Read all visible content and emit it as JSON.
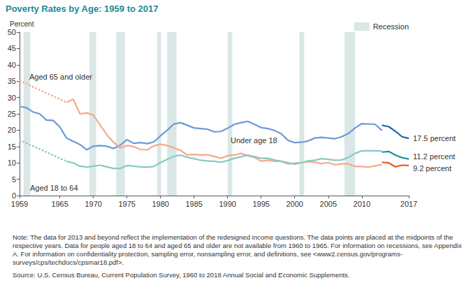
{
  "chart_data": {
    "type": "line",
    "title": "Poverty Rates by Age: 1959 to 2017",
    "ylabel": "Percent",
    "x": [
      1959,
      1960,
      1961,
      1962,
      1963,
      1964,
      1965,
      1966,
      1967,
      1968,
      1969,
      1970,
      1971,
      1972,
      1973,
      1974,
      1975,
      1976,
      1977,
      1978,
      1979,
      1980,
      1981,
      1982,
      1983,
      1984,
      1985,
      1986,
      1987,
      1988,
      1989,
      1990,
      1991,
      1992,
      1993,
      1994,
      1995,
      1996,
      1997,
      1998,
      1999,
      2000,
      2001,
      2002,
      2003,
      2004,
      2005,
      2006,
      2007,
      2008,
      2009,
      2010,
      2011,
      2012,
      2013,
      2014,
      2015,
      2016,
      2017
    ],
    "xlim": [
      1959,
      2017
    ],
    "xticks": [
      1959,
      1965,
      1970,
      1975,
      1980,
      1985,
      1990,
      1995,
      2000,
      2005,
      2010,
      2017
    ],
    "ylim": [
      0,
      50
    ],
    "yticks": [
      0,
      5,
      10,
      15,
      20,
      25,
      30,
      35,
      40,
      45,
      50
    ],
    "grid": false,
    "legend": "upper right",
    "recessions": {
      "name": "Recession",
      "color": "#dae7e7",
      "periods": [
        [
          1959.6,
          1960.6
        ],
        [
          1969.4,
          1970.4
        ],
        [
          1973.4,
          1974.7
        ],
        [
          1979.5,
          1980.1
        ],
        [
          1981.0,
          1982.4
        ],
        [
          1990.0,
          1990.7
        ],
        [
          2000.7,
          2001.4
        ],
        [
          2007.4,
          2009.0
        ]
      ]
    },
    "series": [
      {
        "name": "Under age 18",
        "color": "#6b9ad6",
        "line_style": "solid",
        "values": [
          27.3,
          26.9,
          25.6,
          25.0,
          23.1,
          23.0,
          21.0,
          17.6,
          16.6,
          15.6,
          14.0,
          15.1,
          15.3,
          15.1,
          14.4,
          15.4,
          17.1,
          16.0,
          16.2,
          15.9,
          16.4,
          18.3,
          20.0,
          21.9,
          22.3,
          21.5,
          20.7,
          20.5,
          20.3,
          19.5,
          19.6,
          20.6,
          21.8,
          22.3,
          22.7,
          21.8,
          20.8,
          20.5,
          19.9,
          18.9,
          16.9,
          16.2,
          16.3,
          16.7,
          17.6,
          17.8,
          17.6,
          17.4,
          18.0,
          19.0,
          20.7,
          22.0,
          21.9,
          21.8,
          19.9,
          null,
          null,
          null,
          null
        ]
      },
      {
        "name": "Under age 18",
        "color": "#1d67a6",
        "line_style": "solid",
        "values": [
          null,
          null,
          null,
          null,
          null,
          null,
          null,
          null,
          null,
          null,
          null,
          null,
          null,
          null,
          null,
          null,
          null,
          null,
          null,
          null,
          null,
          null,
          null,
          null,
          null,
          null,
          null,
          null,
          null,
          null,
          null,
          null,
          null,
          null,
          null,
          null,
          null,
          null,
          null,
          null,
          null,
          null,
          null,
          null,
          null,
          null,
          null,
          null,
          null,
          null,
          null,
          null,
          null,
          null,
          21.5,
          21.1,
          19.7,
          18.0,
          17.5
        ],
        "value_labels": [
          null,
          null,
          null,
          null,
          null,
          null,
          null,
          null,
          null,
          null,
          null,
          null,
          null,
          null,
          null,
          null,
          null,
          null,
          null,
          null,
          null,
          null,
          null,
          null,
          null,
          null,
          null,
          null,
          null,
          null,
          null,
          null,
          null,
          null,
          null,
          null,
          null,
          null,
          null,
          null,
          null,
          null,
          null,
          null,
          null,
          null,
          null,
          null,
          null,
          null,
          null,
          null,
          null,
          null,
          null,
          null,
          null,
          null,
          "17.5 percent"
        ]
      },
      {
        "name": "Aged 65 and older",
        "color": "#f5a98a",
        "line_style": "dotted",
        "values": [
          35.2,
          null,
          null,
          null,
          null,
          null,
          null,
          28.5,
          null,
          null,
          null,
          null,
          null,
          null,
          null,
          null,
          null,
          null,
          null,
          null,
          null,
          null,
          null,
          null,
          null,
          null,
          null,
          null,
          null,
          null,
          null,
          null,
          null,
          null,
          null,
          null,
          null,
          null,
          null,
          null,
          null,
          null,
          null,
          null,
          null,
          null,
          null,
          null,
          null,
          null,
          null,
          null,
          null,
          null,
          null,
          null,
          null,
          null,
          null
        ]
      },
      {
        "name": "Aged 65 and older",
        "color": "#f5a98a",
        "line_style": "solid",
        "values": [
          null,
          null,
          null,
          null,
          null,
          null,
          null,
          28.5,
          29.5,
          25.0,
          25.3,
          24.6,
          21.6,
          18.6,
          16.3,
          14.6,
          15.3,
          15.0,
          14.1,
          14.0,
          15.2,
          15.7,
          15.3,
          14.6,
          13.8,
          12.4,
          12.6,
          12.4,
          12.5,
          12.0,
          11.4,
          12.2,
          12.4,
          12.9,
          12.2,
          11.7,
          10.5,
          10.8,
          10.5,
          10.5,
          9.7,
          9.9,
          10.1,
          10.4,
          10.2,
          9.8,
          10.1,
          9.4,
          9.7,
          9.7,
          8.9,
          8.9,
          8.7,
          9.1,
          9.5,
          null,
          null,
          null,
          null
        ]
      },
      {
        "name": "Aged 65 and older",
        "color": "#e5572b",
        "line_style": "solid",
        "values": [
          null,
          null,
          null,
          null,
          null,
          null,
          null,
          null,
          null,
          null,
          null,
          null,
          null,
          null,
          null,
          null,
          null,
          null,
          null,
          null,
          null,
          null,
          null,
          null,
          null,
          null,
          null,
          null,
          null,
          null,
          null,
          null,
          null,
          null,
          null,
          null,
          null,
          null,
          null,
          null,
          null,
          null,
          null,
          null,
          null,
          null,
          null,
          null,
          null,
          null,
          null,
          null,
          null,
          null,
          10.2,
          10.0,
          8.8,
          9.3,
          9.2
        ],
        "value_labels": [
          null,
          null,
          null,
          null,
          null,
          null,
          null,
          null,
          null,
          null,
          null,
          null,
          null,
          null,
          null,
          null,
          null,
          null,
          null,
          null,
          null,
          null,
          null,
          null,
          null,
          null,
          null,
          null,
          null,
          null,
          null,
          null,
          null,
          null,
          null,
          null,
          null,
          null,
          null,
          null,
          null,
          null,
          null,
          null,
          null,
          null,
          null,
          null,
          null,
          null,
          null,
          null,
          null,
          null,
          null,
          null,
          null,
          null,
          "9.2 percent"
        ]
      },
      {
        "name": "Aged 18 to 64",
        "color": "#86c8c6",
        "line_style": "dotted",
        "values": [
          17.0,
          null,
          null,
          null,
          null,
          null,
          null,
          10.5,
          null,
          null,
          null,
          null,
          null,
          null,
          null,
          null,
          null,
          null,
          null,
          null,
          null,
          null,
          null,
          null,
          null,
          null,
          null,
          null,
          null,
          null,
          null,
          null,
          null,
          null,
          null,
          null,
          null,
          null,
          null,
          null,
          null,
          null,
          null,
          null,
          null,
          null,
          null,
          null,
          null,
          null,
          null,
          null,
          null,
          null,
          null,
          null,
          null,
          null,
          null
        ]
      },
      {
        "name": "Aged 18 to 64",
        "color": "#86c8c6",
        "line_style": "solid",
        "values": [
          null,
          null,
          null,
          null,
          null,
          null,
          null,
          10.5,
          10.0,
          9.0,
          8.7,
          9.0,
          9.3,
          8.8,
          8.3,
          8.3,
          9.2,
          9.0,
          8.8,
          8.7,
          8.9,
          10.1,
          11.1,
          12.0,
          12.4,
          11.7,
          11.3,
          10.8,
          10.6,
          10.5,
          10.2,
          10.7,
          11.4,
          11.9,
          12.4,
          11.9,
          11.4,
          11.4,
          10.9,
          10.5,
          10.1,
          9.6,
          10.1,
          10.6,
          10.8,
          11.3,
          11.1,
          10.8,
          10.9,
          11.7,
          12.9,
          13.7,
          13.7,
          13.7,
          13.6,
          null,
          null,
          null,
          null
        ]
      },
      {
        "name": "Aged 18 to 64",
        "color": "#17909a",
        "line_style": "solid",
        "values": [
          null,
          null,
          null,
          null,
          null,
          null,
          null,
          null,
          null,
          null,
          null,
          null,
          null,
          null,
          null,
          null,
          null,
          null,
          null,
          null,
          null,
          null,
          null,
          null,
          null,
          null,
          null,
          null,
          null,
          null,
          null,
          null,
          null,
          null,
          null,
          null,
          null,
          null,
          null,
          null,
          null,
          null,
          null,
          null,
          null,
          null,
          null,
          null,
          null,
          null,
          null,
          null,
          null,
          null,
          13.3,
          13.5,
          12.4,
          11.6,
          11.2
        ],
        "value_labels": [
          null,
          null,
          null,
          null,
          null,
          null,
          null,
          null,
          null,
          null,
          null,
          null,
          null,
          null,
          null,
          null,
          null,
          null,
          null,
          null,
          null,
          null,
          null,
          null,
          null,
          null,
          null,
          null,
          null,
          null,
          null,
          null,
          null,
          null,
          null,
          null,
          null,
          null,
          null,
          null,
          null,
          null,
          null,
          null,
          null,
          null,
          null,
          null,
          null,
          null,
          null,
          null,
          null,
          null,
          null,
          null,
          null,
          null,
          "11.2 percent"
        ]
      }
    ],
    "notes": "Note: The data for 2013 and beyond reflect the implementation of the redesigned income questions. The data points are placed at the midpoints of the respective years. Data for people aged 18 to 64 and aged 65 and older are not available from 1960 to 1965. For information on recessions, see Appendix A. For information on confidentiality protection, sampling error, nonsampling error, and definitions, see <www2.census.gov/programs-surveys/cps/techdocs/cpsmar18.pdf>.",
    "source": "Source: U.S. Census Bureau, Current Population Survey, 1960 to 2018 Annual Social and Economic Supplements."
  }
}
